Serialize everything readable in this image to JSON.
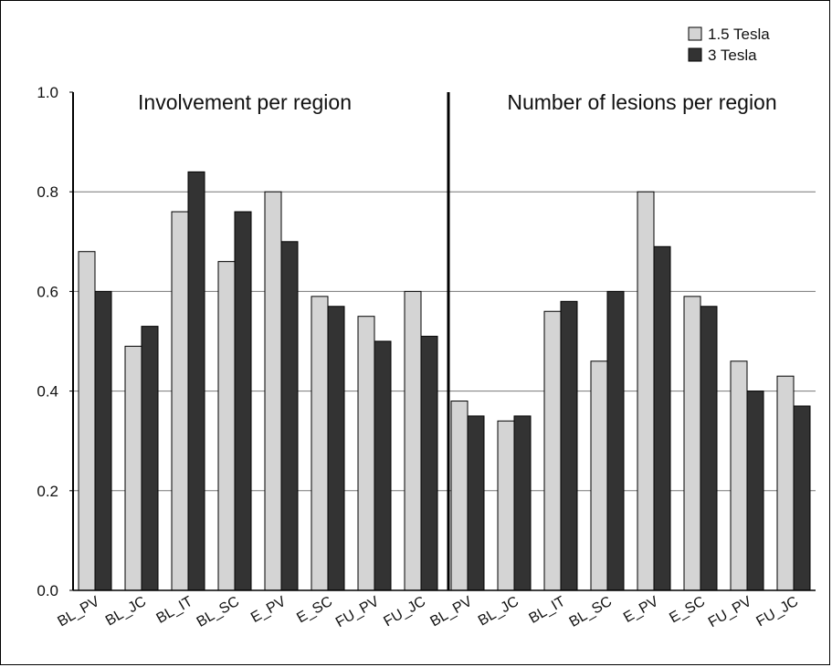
{
  "chart_data": {
    "type": "bar",
    "legend": [
      {
        "name": "1.5 Tesla",
        "color": "#d4d4d4"
      },
      {
        "name": "3 Tesla",
        "color": "#333333"
      }
    ],
    "legend_position": "top-right",
    "grid": "horizontal",
    "ylim": [
      0,
      1.0
    ],
    "yticks": [
      "0.0",
      "0.2",
      "0.4",
      "0.6",
      "0.8",
      "1.0"
    ],
    "panels": [
      {
        "title": "Involvement per region",
        "categories": [
          "BL_PV",
          "BL_JC",
          "BL_IT",
          "BL_SC",
          "E_PV",
          "E_SC",
          "FU_PV",
          "FU_JC"
        ],
        "series": [
          {
            "name": "1.5 Tesla",
            "values": [
              0.68,
              0.49,
              0.76,
              0.66,
              0.8,
              0.59,
              0.55,
              0.6
            ]
          },
          {
            "name": "3 Tesla",
            "values": [
              0.6,
              0.53,
              0.84,
              0.76,
              0.7,
              0.57,
              0.5,
              0.51
            ]
          }
        ]
      },
      {
        "title": "Number of lesions per region",
        "categories": [
          "BL_PV",
          "BL_JC",
          "BL_IT",
          "BL_SC",
          "E_PV",
          "E_SC",
          "FU_PV",
          "FU_JC"
        ],
        "series": [
          {
            "name": "1.5 Tesla",
            "values": [
              0.38,
              0.34,
              0.56,
              0.46,
              0.8,
              0.59,
              0.46,
              0.43
            ]
          },
          {
            "name": "3 Tesla",
            "values": [
              0.35,
              0.35,
              0.58,
              0.6,
              0.69,
              0.57,
              0.4,
              0.37
            ]
          }
        ]
      }
    ]
  }
}
